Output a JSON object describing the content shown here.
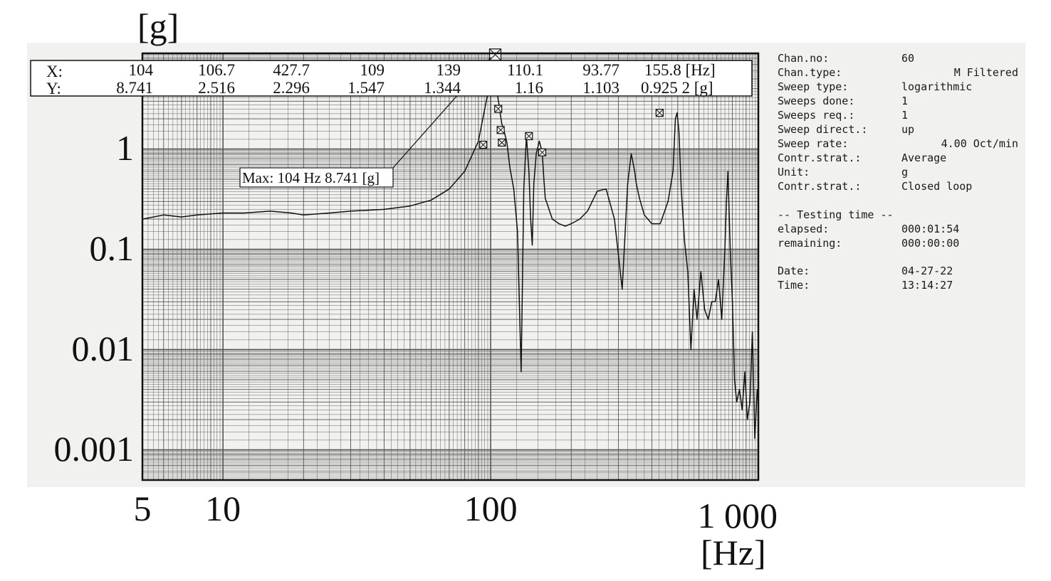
{
  "chart_data": {
    "type": "line",
    "xlabel": "[Hz]",
    "ylabel": "[g]",
    "x_scale": "log",
    "y_scale": "log",
    "xlim": [
      5,
      1000
    ],
    "ylim": [
      0.0005,
      9
    ],
    "grid": true,
    "x_ticks": [
      {
        "value": 5,
        "label": "5"
      },
      {
        "value": 10,
        "label": "10"
      },
      {
        "value": 100,
        "label": "100"
      },
      {
        "value": 1000,
        "label": "1 000"
      }
    ],
    "y_ticks": [
      {
        "value": 1,
        "label": "1"
      },
      {
        "value": 0.1,
        "label": "0.1"
      },
      {
        "value": 0.01,
        "label": "0.01"
      },
      {
        "value": 0.001,
        "label": "0.001"
      }
    ],
    "series": [
      {
        "x": [
          5,
          6,
          7,
          8,
          10,
          12,
          15,
          18,
          20,
          25,
          30,
          40,
          50,
          60,
          70,
          80,
          90,
          95,
          100,
          104,
          106,
          108,
          110,
          112,
          115,
          118,
          122,
          126,
          130,
          133,
          136,
          139,
          141,
          143,
          145,
          148,
          152,
          155.8,
          158,
          160,
          163,
          166,
          170,
          175,
          180,
          190,
          200,
          215,
          230,
          250,
          270,
          290,
          310,
          325,
          335,
          345,
          350,
          360,
          375,
          400,
          430,
          460,
          480,
          490,
          497,
          505,
          515,
          530,
          545,
          560,
          575,
          590,
          610,
          630,
          650,
          670,
          690,
          710,
          730,
          750,
          760,
          770,
          785,
          800,
          815,
          830,
          850,
          870,
          890,
          910,
          930,
          950,
          970,
          990,
          1000
        ],
        "y": [
          0.2,
          0.22,
          0.21,
          0.22,
          0.23,
          0.23,
          0.24,
          0.23,
          0.22,
          0.23,
          0.24,
          0.25,
          0.27,
          0.31,
          0.4,
          0.6,
          1.2,
          2.5,
          5.0,
          8.741,
          3.5,
          2.516,
          1.8,
          1.547,
          1.16,
          0.65,
          0.4,
          0.15,
          0.006,
          0.4,
          1.344,
          0.6,
          0.2,
          0.11,
          0.45,
          0.9,
          1.2,
          0.925,
          0.5,
          0.32,
          0.28,
          0.24,
          0.2,
          0.19,
          0.18,
          0.17,
          0.18,
          0.2,
          0.24,
          0.38,
          0.4,
          0.2,
          0.04,
          0.45,
          0.9,
          0.6,
          0.45,
          0.32,
          0.22,
          0.18,
          0.18,
          0.3,
          0.6,
          2.0,
          2.296,
          1.5,
          0.4,
          0.12,
          0.06,
          0.01,
          0.04,
          0.02,
          0.06,
          0.025,
          0.02,
          0.03,
          0.03,
          0.05,
          0.02,
          0.1,
          0.3,
          0.6,
          0.1,
          0.03,
          0.005,
          0.003,
          0.004,
          0.0025,
          0.006,
          0.002,
          0.003,
          0.015,
          0.0013,
          0.004,
          0.003
        ]
      }
    ],
    "markers": [
      {
        "x": 104,
        "y": 8.741
      },
      {
        "x": 106.7,
        "y": 2.516
      },
      {
        "x": 427.7,
        "y": 2.296
      },
      {
        "x": 109,
        "y": 1.547
      },
      {
        "x": 139,
        "y": 1.344
      },
      {
        "x": 110.1,
        "y": 1.16
      },
      {
        "x": 93.77,
        "y": 1.103
      },
      {
        "x": 155.8,
        "y": 0.9252
      }
    ],
    "readout": {
      "x_label": "X:",
      "y_label": "Y:",
      "x_values": [
        "104",
        "106.7",
        "427.7",
        "109",
        "139",
        "110.1",
        "93.77",
        "155.8 [Hz]"
      ],
      "y_values": [
        "8.741",
        "2.516",
        "2.296",
        "1.547",
        "1.344",
        "1.16",
        "1.103",
        "0.925 2 [g]"
      ]
    },
    "max_annotation": "Max: 104 Hz 8.741 [g]"
  },
  "info_panel": {
    "rows": [
      {
        "label": "Chan.no:",
        "value": "60"
      },
      {
        "label": "Chan.type:",
        "value": "M Filtered"
      },
      {
        "label": "Sweep type:",
        "value": "logarithmic"
      },
      {
        "label": "Sweeps done:",
        "value": "1"
      },
      {
        "label": "Sweeps req.:",
        "value": "1"
      },
      {
        "label": "Sweep direct.:",
        "value": "up"
      },
      {
        "label": "Sweep rate:",
        "value": "4.00 Oct/min"
      },
      {
        "label": "Contr.strat.:",
        "value": "Average"
      },
      {
        "label": "Unit:",
        "value": "g"
      },
      {
        "label": "Contr.strat.:",
        "value": "Closed loop"
      }
    ],
    "testing_header": "-- Testing time --",
    "testing_rows": [
      {
        "label": "elapsed:",
        "value": "000:01:54"
      },
      {
        "label": "remaining:",
        "value": "000:00:00"
      }
    ],
    "date_rows": [
      {
        "label": "Date:",
        "value": "04-27-22"
      },
      {
        "label": "Time:",
        "value": "13:14:27"
      }
    ]
  },
  "colors": {
    "ink": "#111111",
    "grid": "#555555",
    "paper": "#f1f1ef"
  }
}
